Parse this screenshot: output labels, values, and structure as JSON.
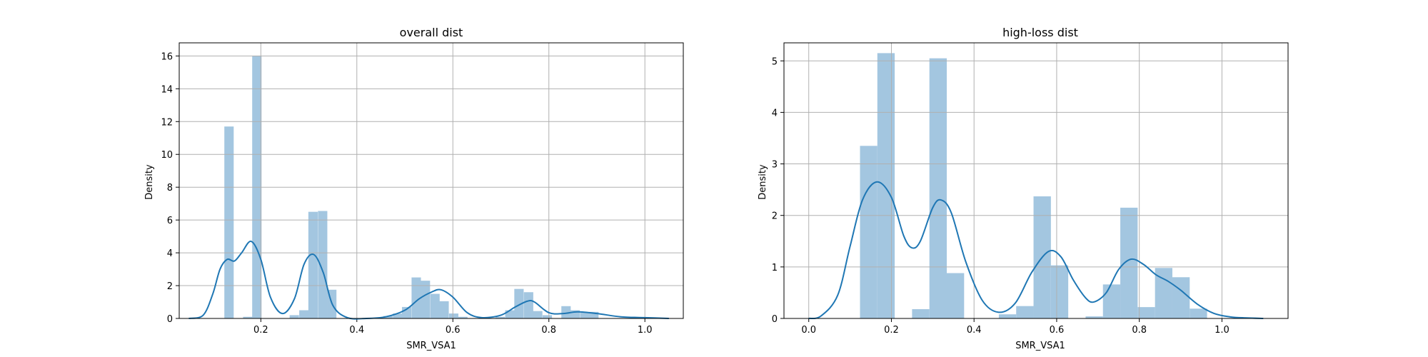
{
  "chart_data": [
    {
      "type": "bar",
      "title": "overall dist",
      "xlabel": "SMR_VSA1",
      "ylabel": "Density",
      "xlim": [
        0.03,
        1.08
      ],
      "ylim": [
        0,
        16.8
      ],
      "xticks": [
        "0.2",
        "0.4",
        "0.6",
        "0.8",
        "1.0"
      ],
      "xtick_values": [
        0.2,
        0.4,
        0.6,
        0.8,
        1.0
      ],
      "yticks": [
        "0",
        "2",
        "4",
        "6",
        "8",
        "10",
        "12",
        "14",
        "16"
      ],
      "ytick_values": [
        0,
        2,
        4,
        6,
        8,
        10,
        12,
        14,
        16
      ],
      "grid": true,
      "histogram": {
        "bin_width": 0.0195,
        "bin_starts": [
          0.124,
          0.143,
          0.163,
          0.182,
          0.26,
          0.28,
          0.299,
          0.319,
          0.338,
          0.455,
          0.475,
          0.494,
          0.514,
          0.533,
          0.553,
          0.572,
          0.592,
          0.611,
          0.689,
          0.709,
          0.728,
          0.748,
          0.767,
          0.787,
          0.826,
          0.845,
          0.865,
          0.884
        ],
        "densities": [
          11.7,
          0.0,
          0.1,
          16.0,
          0.2,
          0.5,
          6.5,
          6.55,
          1.75,
          0.15,
          0.3,
          0.7,
          2.5,
          2.3,
          1.5,
          1.05,
          0.3,
          0.1,
          0.1,
          0.5,
          1.8,
          1.6,
          0.45,
          0.2,
          0.75,
          0.5,
          0.35,
          0.4
        ]
      },
      "kde": {
        "x": [
          0.05,
          0.08,
          0.1,
          0.115,
          0.13,
          0.145,
          0.16,
          0.18,
          0.2,
          0.22,
          0.245,
          0.27,
          0.29,
          0.31,
          0.33,
          0.35,
          0.38,
          0.42,
          0.46,
          0.5,
          0.53,
          0.555,
          0.575,
          0.6,
          0.63,
          0.66,
          0.7,
          0.73,
          0.755,
          0.77,
          0.8,
          0.83,
          0.86,
          0.9,
          0.95,
          1.0,
          1.05
        ],
        "y": [
          0.0,
          0.2,
          1.5,
          3.0,
          3.6,
          3.5,
          4.0,
          4.7,
          3.6,
          1.3,
          0.3,
          1.2,
          3.3,
          3.9,
          2.8,
          0.8,
          0.05,
          0.0,
          0.1,
          0.5,
          1.2,
          1.6,
          1.75,
          1.3,
          0.35,
          0.05,
          0.2,
          0.7,
          1.05,
          1.0,
          0.35,
          0.3,
          0.4,
          0.3,
          0.1,
          0.05,
          0.0
        ]
      }
    },
    {
      "type": "bar",
      "title": "high-loss dist",
      "xlabel": "SMR_VSA1",
      "ylabel": "Density",
      "xlim": [
        -0.06,
        1.16
      ],
      "ylim": [
        0,
        5.35
      ],
      "xticks": [
        "0.0",
        "0.2",
        "0.4",
        "0.6",
        "0.8",
        "1.0"
      ],
      "xtick_values": [
        0.0,
        0.2,
        0.4,
        0.6,
        0.8,
        1.0
      ],
      "yticks": [
        "0",
        "1",
        "2",
        "3",
        "4",
        "5"
      ],
      "ytick_values": [
        0,
        1,
        2,
        3,
        4,
        5
      ],
      "grid": true,
      "histogram": {
        "bin_width": 0.042,
        "bin_starts": [
          0.124,
          0.166,
          0.208,
          0.25,
          0.292,
          0.334,
          0.376,
          0.418,
          0.46,
          0.502,
          0.544,
          0.586,
          0.628,
          0.67,
          0.712,
          0.754,
          0.796,
          0.838,
          0.88,
          0.922
        ],
        "densities": [
          3.35,
          5.15,
          0.0,
          0.18,
          5.05,
          0.88,
          0.0,
          0.0,
          0.08,
          0.24,
          2.37,
          1.03,
          0.0,
          0.04,
          0.66,
          2.15,
          0.22,
          0.98,
          0.8,
          0.19
        ]
      },
      "kde": {
        "x": [
          0.0,
          0.03,
          0.07,
          0.1,
          0.13,
          0.165,
          0.2,
          0.23,
          0.25,
          0.27,
          0.3,
          0.32,
          0.345,
          0.38,
          0.42,
          0.46,
          0.5,
          0.54,
          0.58,
          0.61,
          0.64,
          0.67,
          0.69,
          0.72,
          0.75,
          0.78,
          0.81,
          0.84,
          0.87,
          0.9,
          0.94,
          0.98,
          1.02,
          1.06,
          1.1
        ],
        "y": [
          0.0,
          0.05,
          0.45,
          1.4,
          2.3,
          2.65,
          2.35,
          1.6,
          1.37,
          1.5,
          2.15,
          2.3,
          2.05,
          1.1,
          0.35,
          0.12,
          0.3,
          0.9,
          1.3,
          1.2,
          0.75,
          0.4,
          0.32,
          0.5,
          0.95,
          1.15,
          1.05,
          0.85,
          0.72,
          0.55,
          0.28,
          0.1,
          0.03,
          0.01,
          0.0
        ]
      }
    }
  ]
}
